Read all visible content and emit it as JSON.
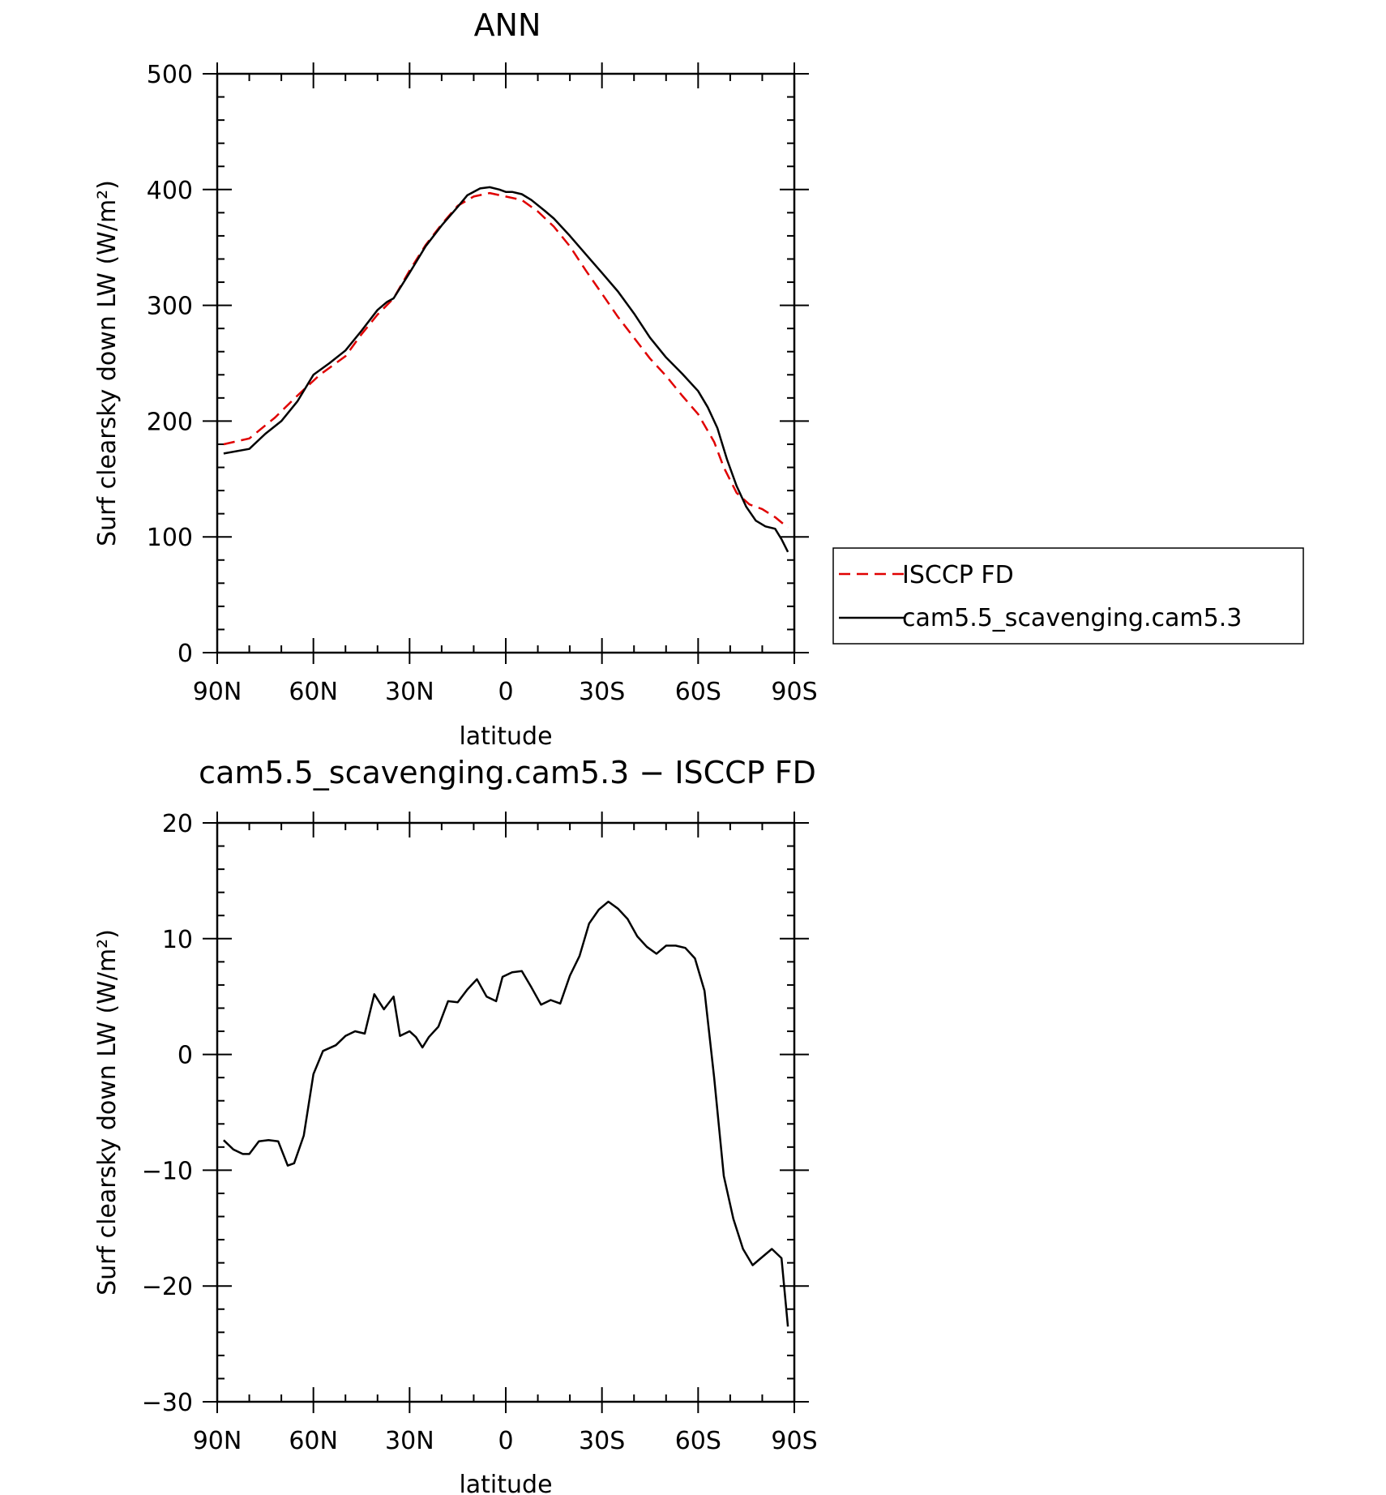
{
  "chart_data": [
    {
      "type": "line",
      "title": "ANN",
      "xlabel": "latitude",
      "ylabel": "Surf clearsky down LW (W/m²)",
      "xlim": [
        90,
        -90
      ],
      "ylim": [
        0,
        500
      ],
      "xticks": [
        {
          "value": 90,
          "label": "90N"
        },
        {
          "value": 60,
          "label": "60N"
        },
        {
          "value": 30,
          "label": "30N"
        },
        {
          "value": 0,
          "label": "0"
        },
        {
          "value": -30,
          "label": "30S"
        },
        {
          "value": -60,
          "label": "60S"
        },
        {
          "value": -90,
          "label": "90S"
        }
      ],
      "yticks": [
        0,
        100,
        200,
        300,
        400,
        500
      ],
      "legend": "right",
      "series": [
        {
          "name": "ISCCP FD",
          "color": "#e00000",
          "dash": true,
          "x": [
            88,
            80,
            72,
            65,
            58,
            50,
            45,
            40,
            35,
            30,
            25,
            20,
            15,
            10,
            5,
            0,
            -5,
            -10,
            -15,
            -20,
            -25,
            -30,
            -35,
            -40,
            -45,
            -50,
            -55,
            -60,
            -65,
            -68,
            -72,
            -76,
            -80,
            -84,
            -88
          ],
          "y": [
            180,
            185,
            203,
            222,
            240,
            256,
            275,
            292,
            306,
            330,
            352,
            370,
            386,
            394,
            397,
            394,
            391,
            381,
            368,
            351,
            330,
            310,
            290,
            272,
            254,
            239,
            222,
            206,
            182,
            160,
            138,
            128,
            124,
            117,
            108
          ]
        },
        {
          "name": "cam5.5_scavenging.cam5.3",
          "color": "#000000",
          "dash": false,
          "x": [
            88,
            80,
            75,
            70,
            65,
            60,
            55,
            50,
            45,
            40,
            37,
            35,
            30,
            25,
            20,
            15,
            12,
            8,
            5,
            2,
            0,
            -2,
            -5,
            -8,
            -12,
            -15,
            -20,
            -25,
            -30,
            -35,
            -40,
            -45,
            -50,
            -55,
            -60,
            -63,
            -66,
            -69,
            -72,
            -75,
            -78,
            -81,
            -84,
            -86,
            -88
          ],
          "y": [
            172,
            176,
            189,
            200,
            217,
            240,
            250,
            261,
            278,
            296,
            303,
            306,
            328,
            351,
            369,
            385,
            395,
            401,
            402,
            400,
            398,
            398,
            396,
            391,
            382,
            375,
            360,
            344,
            328,
            312,
            293,
            272,
            255,
            241,
            226,
            212,
            194,
            167,
            144,
            126,
            114,
            109,
            107,
            98,
            87
          ]
        }
      ]
    },
    {
      "type": "line",
      "title": "cam5.5_scavenging.cam5.3 − ISCCP FD",
      "xlabel": "latitude",
      "ylabel": "Surf clearsky down LW (W/m²)",
      "xlim": [
        90,
        -90
      ],
      "ylim": [
        -30,
        20
      ],
      "xticks": [
        {
          "value": 90,
          "label": "90N"
        },
        {
          "value": 60,
          "label": "60N"
        },
        {
          "value": 30,
          "label": "30N"
        },
        {
          "value": 0,
          "label": "0"
        },
        {
          "value": -30,
          "label": "30S"
        },
        {
          "value": -60,
          "label": "60S"
        },
        {
          "value": -90,
          "label": "90S"
        }
      ],
      "yticks": [
        -30,
        -20,
        -10,
        0,
        10,
        20
      ],
      "series": [
        {
          "color": "#000000",
          "dash": false,
          "x": [
            88,
            85,
            82,
            80,
            77,
            74,
            71,
            68,
            66,
            63,
            60,
            57,
            53,
            50,
            47,
            44,
            41,
            38,
            35,
            33,
            30,
            28,
            26,
            24,
            21,
            18,
            15,
            12,
            9,
            6,
            3,
            1,
            -2,
            -5,
            -8,
            -11,
            -14,
            -17,
            -20,
            -23,
            -26,
            -29,
            -32,
            -35,
            -38,
            -41,
            -44,
            -47,
            -50,
            -53,
            -56,
            -59,
            -62,
            -65,
            -68,
            -71,
            -74,
            -77,
            -80,
            -83,
            -86,
            -88
          ],
          "y": [
            -7.4,
            -8.2,
            -8.6,
            -8.6,
            -7.5,
            -7.4,
            -7.5,
            -9.6,
            -9.4,
            -7,
            -1.7,
            0.3,
            0.8,
            1.6,
            2,
            1.8,
            5.2,
            3.9,
            5,
            1.6,
            2,
            1.5,
            0.6,
            1.5,
            2.4,
            4.6,
            4.5,
            5.6,
            6.5,
            5,
            4.6,
            6.7,
            7.1,
            7.2,
            5.8,
            4.3,
            4.7,
            4.4,
            6.8,
            8.5,
            11.3,
            12.5,
            13.2,
            12.6,
            11.7,
            10.2,
            9.3,
            8.7,
            9.4,
            9.4,
            9.2,
            8.3,
            5.5,
            -2,
            -10.5,
            -14.2,
            -16.8,
            -18.2,
            -17.5,
            -16.8,
            -17.6,
            -23.5
          ]
        }
      ]
    }
  ]
}
